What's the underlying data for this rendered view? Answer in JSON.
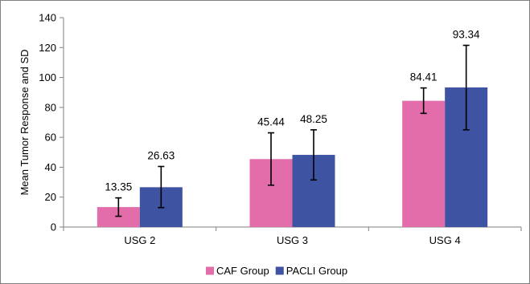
{
  "chart_data": {
    "type": "bar",
    "categories": [
      "USG 2",
      "USG 3",
      "USG 4"
    ],
    "series": [
      {
        "name": "CAF Group",
        "color": "#e36daa",
        "values": [
          13.35,
          45.44,
          84.41
        ],
        "error_low": [
          7.2,
          28.0,
          76.0
        ],
        "error_high": [
          19.5,
          63.0,
          93.0
        ]
      },
      {
        "name": "PACLI Group",
        "color": "#3e53a2",
        "values": [
          26.63,
          48.25,
          93.34
        ],
        "error_low": [
          13.0,
          31.5,
          65.0
        ],
        "error_high": [
          40.5,
          65.0,
          121.5
        ]
      }
    ],
    "data_labels": [
      [
        "13.35",
        "45.44",
        "84.41"
      ],
      [
        "26.63",
        "48.25",
        "93.34"
      ]
    ],
    "ylabel": "Mean Tumor Response and SD",
    "xlabel": "",
    "ylim": [
      0,
      140
    ],
    "yticks": [
      0,
      20,
      40,
      60,
      80,
      100,
      120,
      140
    ],
    "grid": false,
    "legend_position": "bottom"
  }
}
